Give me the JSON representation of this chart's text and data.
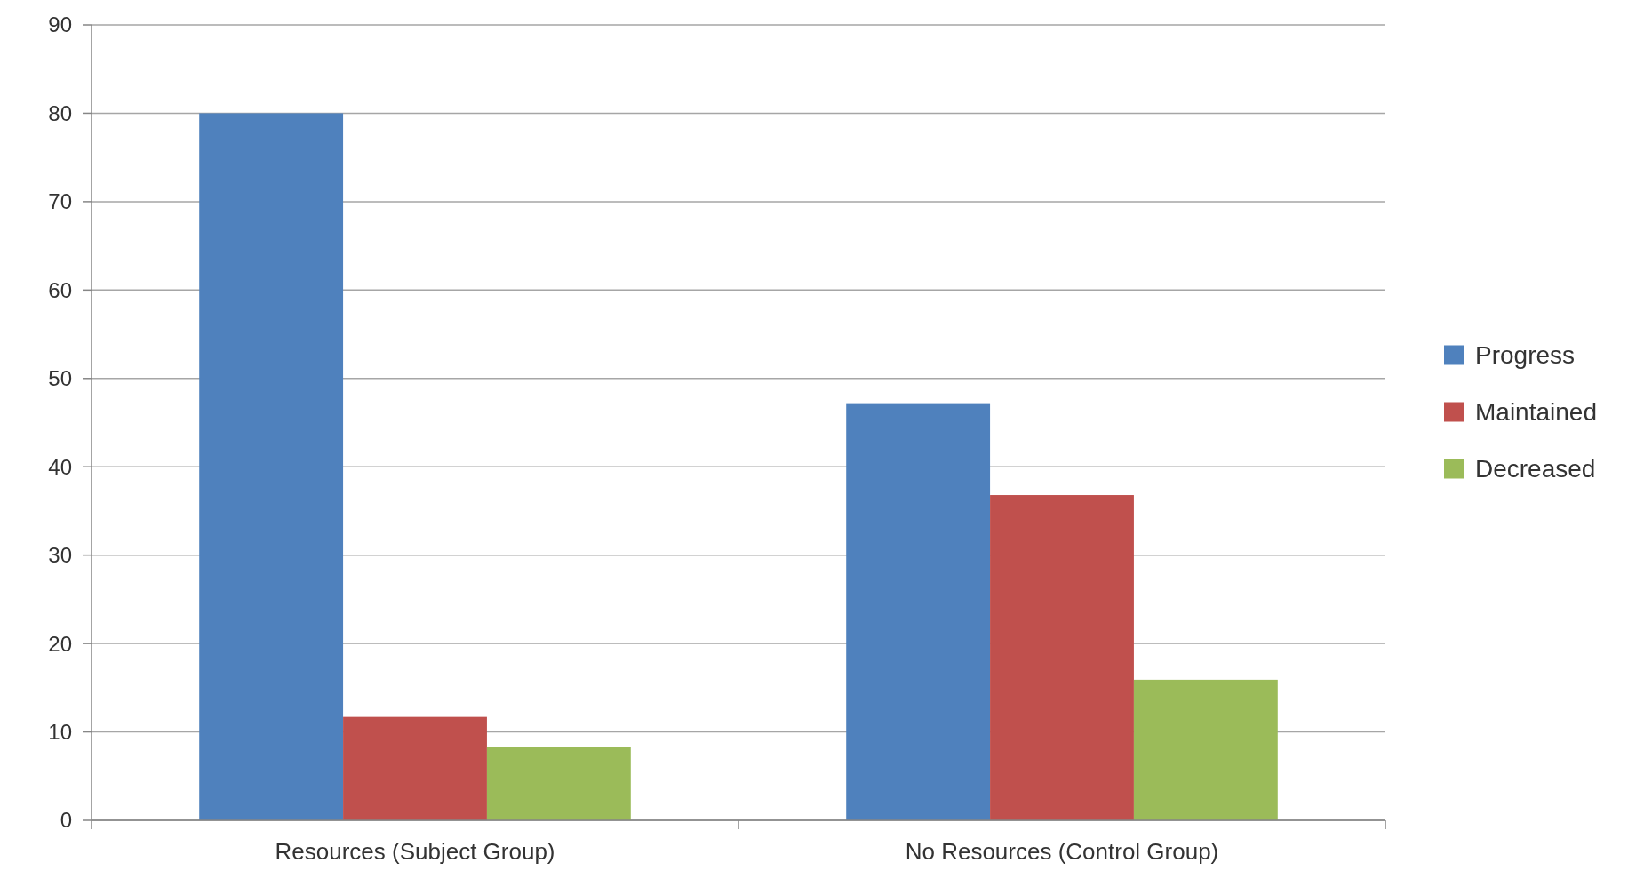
{
  "chart_data": {
    "type": "bar",
    "categories": [
      "Resources (Subject Group)",
      "No Resources (Control Group)"
    ],
    "series": [
      {
        "name": "Progress",
        "color": "#4f81bd",
        "values": [
          80,
          47.2
        ]
      },
      {
        "name": "Maintained",
        "color": "#c0504d",
        "values": [
          11.7,
          36.8
        ]
      },
      {
        "name": "Decreased",
        "color": "#9bbb59",
        "values": [
          8.3,
          15.9
        ]
      }
    ],
    "ylim": [
      0,
      90
    ],
    "yticks": [
      0,
      10,
      20,
      30,
      40,
      50,
      60,
      70,
      80,
      90
    ],
    "grid": "y",
    "legend": "right"
  }
}
